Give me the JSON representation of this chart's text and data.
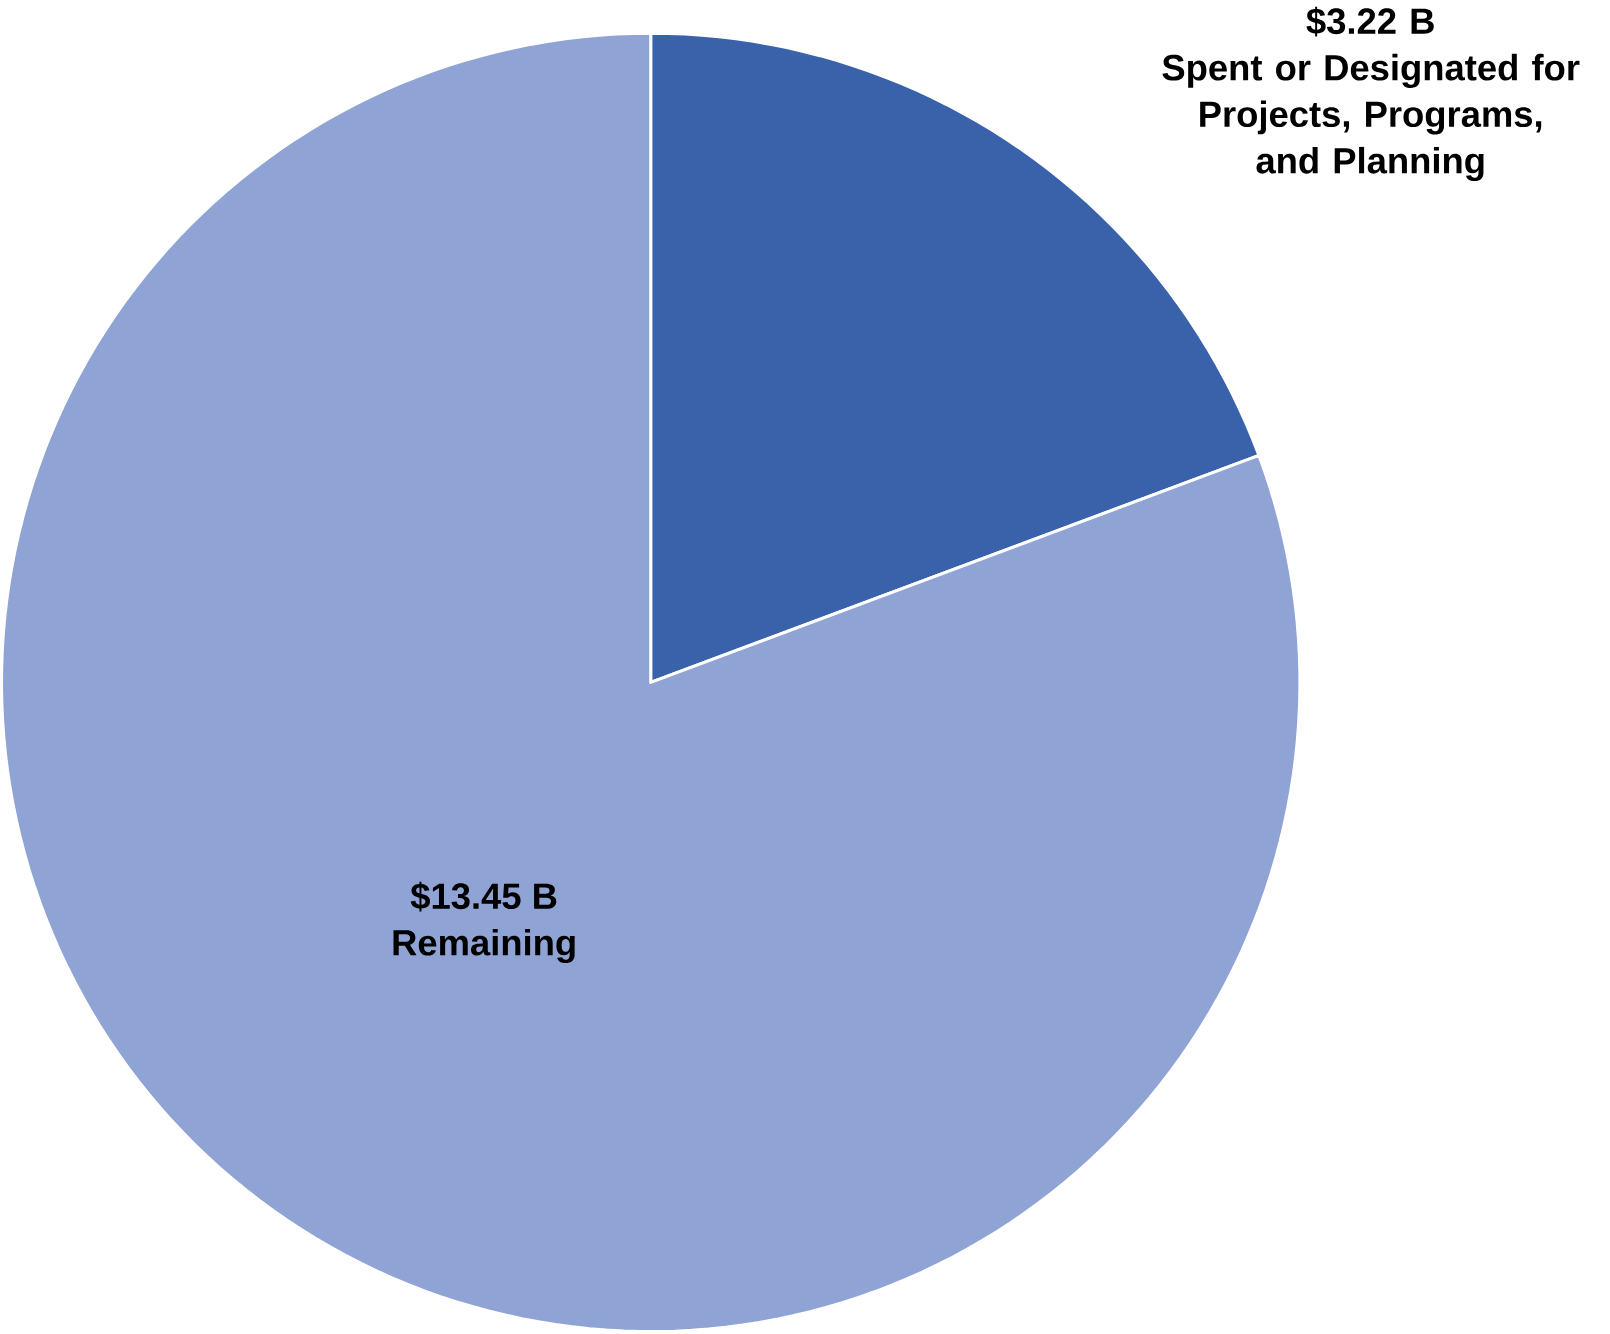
{
  "chart_data": {
    "type": "pie",
    "categories": [
      "Spent or Designated for Projects, Programs, and Planning",
      "Remaining"
    ],
    "values": [
      3.22,
      13.45
    ],
    "value_labels": [
      "$3.22 B",
      "$13.45 B"
    ],
    "colors": [
      "#3a62ab",
      "#8fa3d4"
    ]
  }
}
